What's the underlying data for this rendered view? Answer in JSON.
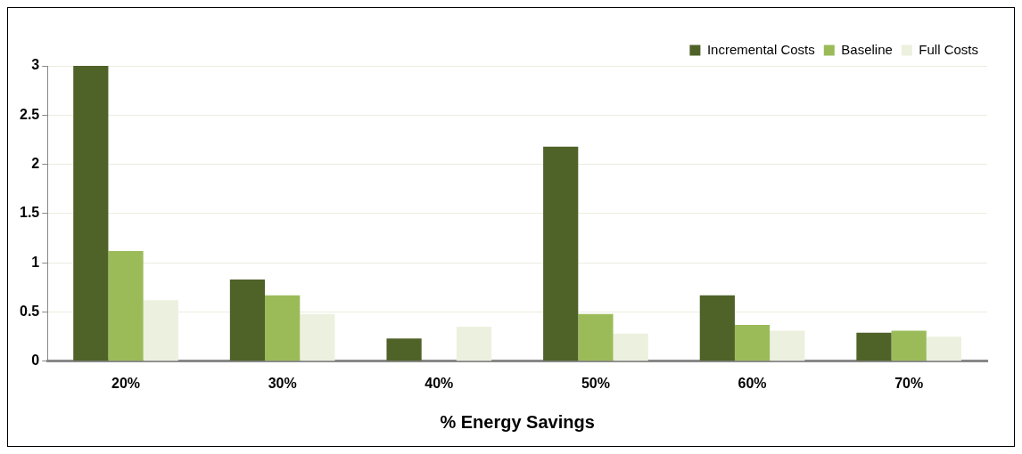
{
  "chart_data": {
    "type": "bar",
    "xlabel": "% Energy Savings",
    "categories": [
      "20%",
      "30%",
      "40%",
      "50%",
      "60%",
      "70%"
    ],
    "series": [
      {
        "name": "Incremental Costs",
        "color": "#4f6228",
        "values": [
          3.0,
          0.83,
          0.23,
          2.18,
          0.67,
          0.29
        ]
      },
      {
        "name": "Baseline",
        "color": "#9bbb59",
        "values": [
          1.12,
          0.67,
          null,
          0.48,
          0.37,
          0.31
        ]
      },
      {
        "name": "Full Costs",
        "color": "#ebf1de",
        "values": [
          0.62,
          0.48,
          0.35,
          0.28,
          0.31,
          0.25
        ]
      }
    ],
    "ylim": [
      0,
      3
    ],
    "yticks": [
      0,
      0.5,
      1,
      1.5,
      2,
      2.5,
      3
    ],
    "grid": "y",
    "legend": "top right"
  }
}
